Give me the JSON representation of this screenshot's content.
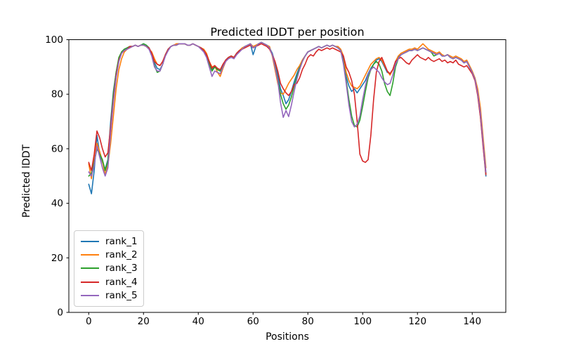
{
  "figure": {
    "title": "Predicted lDDT per position",
    "xlabel": "Positions",
    "ylabel": "Predicted lDDT"
  },
  "chart_data": {
    "type": "line",
    "title": "Predicted lDDT per position",
    "xlabel": "Positions",
    "ylabel": "Predicted lDDT",
    "xlim": [
      -7.25,
      152.25
    ],
    "ylim": [
      0,
      100
    ],
    "x_ticks": [
      0,
      20,
      40,
      60,
      80,
      100,
      120,
      140
    ],
    "y_ticks": [
      0,
      20,
      40,
      60,
      80,
      100
    ],
    "grid": false,
    "legend_position": "lower left",
    "x_start": 0,
    "x_step": 1,
    "n_points": 146,
    "series": [
      {
        "name": "rank_1",
        "color": "#1f77b4",
        "values": [
          47,
          43.5,
          52,
          65,
          58,
          55,
          52.5,
          56,
          70,
          81,
          88,
          93,
          95.5,
          96.5,
          97,
          97.5,
          97.5,
          98,
          97.5,
          98,
          98.5,
          98,
          97,
          95,
          91.5,
          89.5,
          89,
          91,
          94.5,
          96.5,
          97.5,
          98,
          98,
          98.5,
          98.5,
          98.5,
          98,
          98,
          98.5,
          98,
          97.5,
          97,
          96,
          94.5,
          91.5,
          89,
          90,
          89,
          88.5,
          90.5,
          92.5,
          93.5,
          94,
          93.5,
          95,
          96,
          96.5,
          97.5,
          98,
          98.5,
          94.5,
          97.5,
          98.5,
          99,
          98.5,
          98,
          97,
          95,
          91.5,
          87,
          82,
          79.5,
          76.5,
          78,
          81,
          84.5,
          87.5,
          90,
          92.5,
          94,
          95.5,
          96,
          96.5,
          97,
          97.5,
          97,
          97.5,
          98,
          97.5,
          98,
          97.5,
          97,
          96,
          93,
          86.5,
          83,
          81,
          82,
          80.5,
          82,
          83.5,
          85,
          87.5,
          89.5,
          91,
          92.5,
          93,
          92,
          90,
          88,
          87.5,
          89,
          92,
          93.5,
          94.5,
          95,
          95.5,
          96,
          96,
          96.5,
          96,
          96.5,
          97,
          96.5,
          96,
          95.5,
          95,
          94.5,
          95,
          94,
          94,
          94.5,
          93.5,
          93,
          93.5,
          93,
          92.5,
          91.5,
          92,
          90,
          88,
          85.5,
          80,
          72,
          61,
          50
        ]
      },
      {
        "name": "rank_2",
        "color": "#ff7f0e",
        "values": [
          54.5,
          49,
          57,
          62,
          59,
          55.5,
          50.5,
          54,
          62,
          72,
          82,
          89,
          93,
          95.5,
          96.5,
          97,
          97.5,
          98,
          97.5,
          98,
          98,
          97.5,
          96.5,
          95.5,
          93,
          91,
          90.5,
          92,
          94.5,
          96.5,
          97.5,
          98,
          98.5,
          98.5,
          98.5,
          98.5,
          98,
          98,
          98.5,
          98,
          97.5,
          97,
          96.5,
          95,
          92,
          90,
          90.5,
          88,
          86.5,
          89.5,
          92,
          93.5,
          94,
          93.5,
          95,
          96,
          97,
          97.5,
          98,
          98.5,
          97.5,
          98,
          98.5,
          99,
          98.5,
          98,
          97.5,
          94,
          89,
          84,
          80.5,
          80,
          82,
          84,
          85.5,
          87,
          89,
          90.5,
          92.5,
          94,
          95.5,
          96,
          96.5,
          97,
          97.5,
          97,
          97.5,
          98,
          97.5,
          98,
          97.5,
          97.5,
          96.5,
          94,
          88,
          85,
          83,
          82.5,
          82,
          83,
          85,
          87,
          89,
          91,
          92,
          93,
          93.5,
          92.5,
          90.5,
          88.5,
          87,
          89,
          92,
          94,
          95,
          95.5,
          96,
          96.5,
          96.5,
          97,
          96.5,
          97.5,
          98.5,
          97.5,
          96.5,
          96,
          95.5,
          95,
          95.5,
          94.5,
          94,
          94.5,
          94,
          93.5,
          94,
          93.5,
          93,
          92,
          92.5,
          90.5,
          88.5,
          86,
          82,
          75,
          64,
          53
        ]
      },
      {
        "name": "rank_3",
        "color": "#2ca02c",
        "values": [
          50,
          51,
          55,
          60,
          58,
          56,
          52,
          55.5,
          68,
          80,
          88,
          93.5,
          95.5,
          96.5,
          97,
          97.5,
          97.5,
          98,
          97.5,
          98,
          98.5,
          98,
          97,
          94.5,
          90.5,
          88,
          88.5,
          91,
          94.5,
          96.5,
          97.5,
          98,
          98,
          98.5,
          98.5,
          98.5,
          98,
          98,
          98.5,
          98,
          97.5,
          97,
          96,
          94,
          91,
          88.5,
          90,
          89,
          88.5,
          90.5,
          92.5,
          93.5,
          94,
          93.5,
          95,
          96,
          96.5,
          97.5,
          98,
          98.5,
          97,
          97.5,
          98.5,
          99,
          98.5,
          98,
          97,
          94.5,
          90.5,
          85.5,
          80,
          76.5,
          74.5,
          76,
          79,
          83,
          86.5,
          89.5,
          92,
          94,
          95.5,
          96,
          96.5,
          97,
          97.5,
          97,
          97.5,
          98,
          97.5,
          98,
          97.5,
          97,
          96,
          91.5,
          85,
          78,
          72,
          68.5,
          68,
          70.5,
          75.5,
          81,
          86,
          89,
          91,
          92,
          91,
          88.5,
          84,
          81,
          79.5,
          84,
          90,
          93,
          94.5,
          95,
          95.5,
          96,
          96,
          96.5,
          96,
          96.5,
          97,
          96.5,
          96,
          95.5,
          94,
          94.5,
          95,
          94,
          94,
          94.5,
          93.5,
          93,
          93.5,
          93,
          92.5,
          91.5,
          92,
          90,
          88,
          85.5,
          80,
          72,
          61.5,
          51
        ]
      },
      {
        "name": "rank_4",
        "color": "#d62728",
        "values": [
          55,
          52,
          58,
          66.5,
          64,
          60,
          57,
          58.5,
          68,
          78,
          87,
          92.5,
          95,
          96,
          96.5,
          97.5,
          97.5,
          98,
          97.5,
          98,
          98,
          97.5,
          97,
          95,
          92,
          91,
          90.5,
          92,
          94.5,
          96.5,
          97.5,
          98,
          98,
          98.5,
          98.5,
          98.5,
          98,
          98,
          98.5,
          98,
          97.5,
          97,
          96,
          94.5,
          92,
          89.5,
          90.5,
          89.5,
          89,
          91,
          92.5,
          93.5,
          94,
          93.5,
          95,
          96,
          96.5,
          97,
          97.5,
          98,
          97,
          97.5,
          98,
          98.5,
          98,
          97.5,
          96.5,
          94.5,
          92,
          88.5,
          84,
          82,
          80.5,
          79.5,
          81,
          83.5,
          84,
          86,
          89,
          91,
          93.5,
          94.5,
          94,
          95.5,
          96.5,
          96,
          96.5,
          97,
          96.5,
          97,
          96.5,
          96,
          95.5,
          94,
          90,
          88,
          85,
          80,
          70,
          58,
          55.5,
          55,
          56,
          65,
          78,
          88,
          92,
          93.5,
          91,
          88.5,
          87.5,
          89,
          92,
          93,
          93.5,
          92.5,
          91.5,
          91,
          92.5,
          93.5,
          94.5,
          93.5,
          93,
          92.5,
          93.5,
          92.5,
          92,
          92.5,
          93,
          92,
          92.5,
          91.5,
          92,
          91.5,
          92.5,
          91,
          90.5,
          90,
          90.5,
          89,
          87.5,
          85,
          79.5,
          71.5,
          60.5,
          50.5
        ]
      },
      {
        "name": "rank_5",
        "color": "#9467bd",
        "values": [
          51.5,
          50,
          54,
          61,
          57,
          53,
          50,
          53,
          66,
          77,
          86,
          92,
          95,
          96,
          96.5,
          97,
          97.5,
          98,
          97.5,
          98,
          98,
          97.5,
          96.5,
          94,
          90,
          88.5,
          88.5,
          91,
          94,
          96,
          97.5,
          98,
          98,
          98.5,
          98.5,
          98.5,
          98,
          98,
          98.5,
          98,
          97.5,
          96.5,
          95.5,
          93.5,
          90,
          86.5,
          88.5,
          88,
          87.5,
          90,
          92,
          93,
          93.5,
          93,
          94.5,
          95.5,
          96.5,
          97.5,
          98,
          98.5,
          97,
          97.5,
          98.5,
          99,
          98.5,
          98,
          97,
          94.5,
          90,
          85,
          77,
          71.5,
          74,
          71.8,
          76,
          81,
          85.5,
          89,
          92,
          94,
          95.5,
          96,
          96.5,
          97,
          97.5,
          97,
          97.5,
          98,
          97.5,
          98,
          97.5,
          97,
          96,
          91,
          84,
          76,
          70,
          68,
          69,
          72,
          78,
          83,
          87,
          89,
          90,
          89,
          88,
          86,
          84.5,
          83.5,
          84,
          87,
          91,
          93,
          94.5,
          95,
          95.5,
          96,
          96,
          96.5,
          96,
          96.5,
          97,
          96.5,
          96,
          95.5,
          95,
          94.5,
          95,
          94,
          94,
          94.5,
          93.5,
          93,
          93.5,
          93,
          92.5,
          91.5,
          92,
          90,
          88,
          85.5,
          80.5,
          73,
          62,
          51.5
        ]
      }
    ]
  }
}
